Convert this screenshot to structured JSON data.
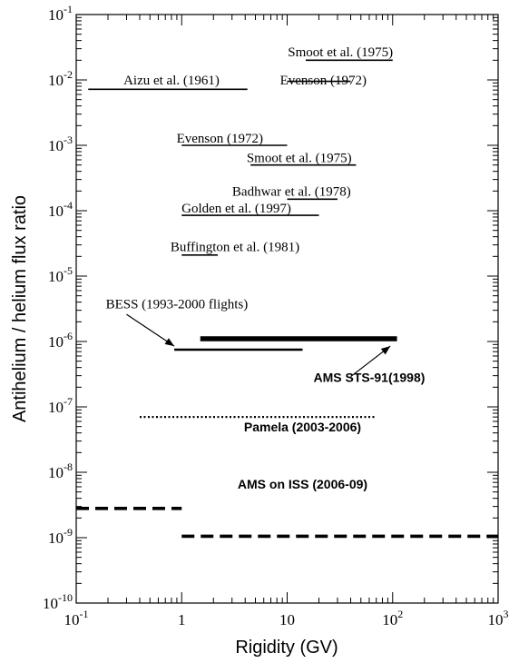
{
  "chart_data": {
    "type": "line",
    "title": "",
    "xlabel": "Rigidity (GV)",
    "ylabel": "Antihelium / helium flux ratio",
    "xscale": "log",
    "yscale": "log",
    "xlim": [
      0.1,
      1000
    ],
    "ylim": [
      1e-10,
      0.1
    ],
    "x_ticks": [
      {
        "value": 0.1,
        "base": "10",
        "exp": "-1"
      },
      {
        "value": 1,
        "base": "1",
        "exp": ""
      },
      {
        "value": 10,
        "base": "10",
        "exp": ""
      },
      {
        "value": 100,
        "base": "10",
        "exp": "2"
      },
      {
        "value": 1000,
        "base": "10",
        "exp": "3"
      }
    ],
    "y_ticks": [
      {
        "value": 1e-10,
        "base": "10",
        "exp": "-10"
      },
      {
        "value": 1e-09,
        "base": "10",
        "exp": "-9"
      },
      {
        "value": 1e-08,
        "base": "10",
        "exp": "-8"
      },
      {
        "value": 1e-07,
        "base": "10",
        "exp": "-7"
      },
      {
        "value": 1e-06,
        "base": "10",
        "exp": "-6"
      },
      {
        "value": 1e-05,
        "base": "10",
        "exp": "-5"
      },
      {
        "value": 0.0001,
        "base": "10",
        "exp": "-4"
      },
      {
        "value": 0.001,
        "base": "10",
        "exp": "-3"
      },
      {
        "value": 0.01,
        "base": "10",
        "exp": "-2"
      },
      {
        "value": 0.1,
        "base": "10",
        "exp": "-1"
      }
    ],
    "series": [
      {
        "name": "Smoot et al. (1975)",
        "x": [
          15,
          100
        ],
        "y": [
          0.02,
          0.02
        ],
        "style": "thin",
        "label_style": "serif"
      },
      {
        "name": "Aizu et al. (1961)",
        "x": [
          0.13,
          4.2
        ],
        "y": [
          0.0072,
          0.0072
        ],
        "style": "thin",
        "label_style": "serif"
      },
      {
        "name": "Evenson (1972)",
        "x": [
          10,
          40
        ],
        "y": [
          0.0095,
          0.0095
        ],
        "style": "thin",
        "label_style": "serif"
      },
      {
        "name": "Evenson (1972)",
        "x": [
          1,
          10
        ],
        "y": [
          0.001,
          0.001
        ],
        "style": "thin",
        "label_style": "serif"
      },
      {
        "name": "Smoot et al. (1975)",
        "x": [
          4.5,
          45
        ],
        "y": [
          0.0005,
          0.0005
        ],
        "style": "thin",
        "label_style": "serif"
      },
      {
        "name": "Badhwar et al. (1978)",
        "x": [
          10,
          30
        ],
        "y": [
          0.00015,
          0.00015
        ],
        "style": "thin",
        "label_style": "serif"
      },
      {
        "name": "Golden et al. (1997)",
        "x": [
          1,
          20
        ],
        "y": [
          8.5e-05,
          8.5e-05
        ],
        "style": "thin",
        "label_style": "serif"
      },
      {
        "name": "Buffington et al. (1981)",
        "x": [
          1,
          2.2
        ],
        "y": [
          2.1e-05,
          2.1e-05
        ],
        "style": "thin",
        "label_style": "serif"
      },
      {
        "name": "BESS (1993-2000 flights)",
        "x": [
          0.85,
          14
        ],
        "y": [
          7.5e-07,
          7.5e-07
        ],
        "style": "medium",
        "label_style": "serif"
      },
      {
        "name": "AMS STS-91(1998)",
        "x": [
          1.5,
          110
        ],
        "y": [
          1.1e-06,
          1.1e-06
        ],
        "style": "thick",
        "label_style": "bold"
      },
      {
        "name": "Pamela (2003-2006)",
        "x": [
          0.4,
          70
        ],
        "y": [
          7e-08,
          7e-08
        ],
        "style": "dotted",
        "label_style": "bold"
      },
      {
        "name": "AMS on ISS (2006-09)",
        "x": [
          0.1,
          1
        ],
        "y": [
          2.8e-09,
          2.8e-09
        ],
        "style": "dashed",
        "label_style": "bold"
      },
      {
        "name": "",
        "x": [
          1,
          1000
        ],
        "y": [
          1.05e-09,
          1.05e-09
        ],
        "style": "dashed",
        "label_style": "bold"
      }
    ],
    "annotations": [
      {
        "text": "Smoot et al. (1975)",
        "x": 32,
        "y": 0.023,
        "style": "serif",
        "underline_from": 15
      },
      {
        "text": "Aizu et al. (1961)",
        "x": 0.8,
        "y": 0.0085,
        "style": "serif"
      },
      {
        "text": "Evenson (1972)",
        "x": 22,
        "y": 0.0085,
        "style": "serif",
        "underline_from": 10
      },
      {
        "text": "Evenson (1972)",
        "x": 2.3,
        "y": 0.0011,
        "style": "serif"
      },
      {
        "text": "Smoot et al. (1975)",
        "x": 13,
        "y": 0.00055,
        "style": "serif"
      },
      {
        "text": "Badhwar et al. (1978)",
        "x": 11,
        "y": 0.00017,
        "style": "serif"
      },
      {
        "text": "Golden et al. (1997)",
        "x": 3.3,
        "y": 9.35e-05,
        "style": "serif"
      },
      {
        "text": "Buffington et al. (1981)",
        "x": 3.2,
        "y": 2.4e-05,
        "style": "serif"
      },
      {
        "text": "BESS (1993-2000 flights)",
        "x": 0.9,
        "y": 3.2e-06,
        "style": "serif"
      },
      {
        "text": "AMS STS-91(1998)",
        "x": 60,
        "y": 2.4e-07,
        "style": "bold"
      },
      {
        "text": "Pamela (2003-2006)",
        "x": 14,
        "y": 4.2e-08,
        "style": "bold"
      },
      {
        "text": "AMS on ISS (2006-09)",
        "x": 14,
        "y": 5.6e-09,
        "style": "bold"
      }
    ],
    "arrows": [
      {
        "from": [
          0.3,
          2.6e-06
        ],
        "to": [
          0.85,
          8.5e-07
        ]
      },
      {
        "from": [
          40,
          2.9e-07
        ],
        "to": [
          95,
          8.5e-07
        ]
      }
    ],
    "grid": false
  }
}
